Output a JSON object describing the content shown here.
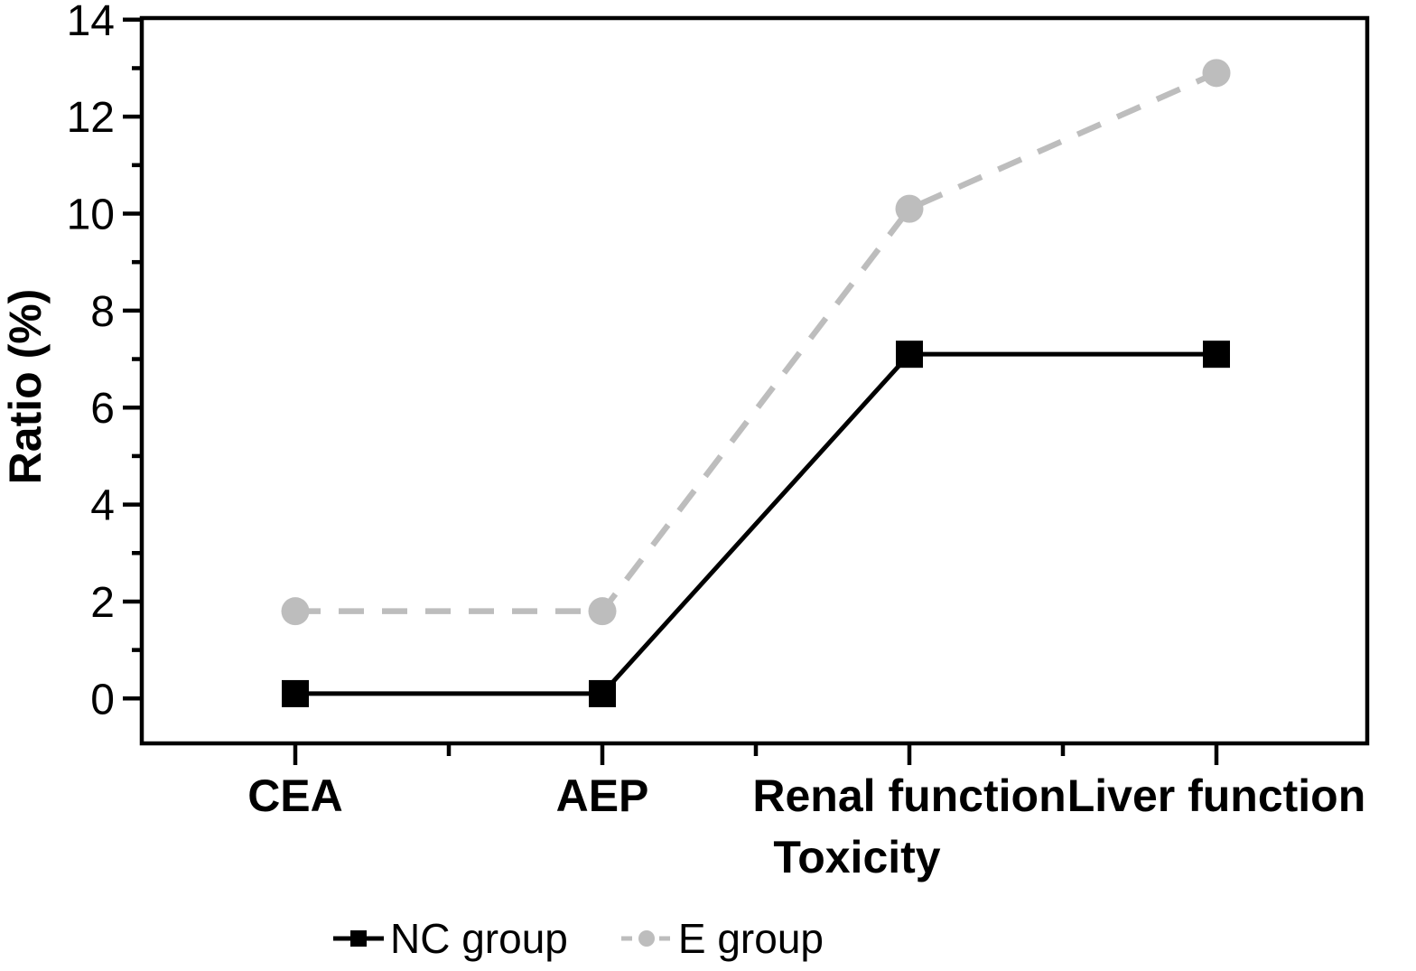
{
  "chart_data": {
    "type": "line",
    "categories": [
      "CEA",
      "AEP",
      "Renal function",
      "Liver function"
    ],
    "series": [
      {
        "name": "NC group",
        "values": [
          0.1,
          0.1,
          7.1,
          7.1
        ],
        "color": "#000000",
        "marker": "square",
        "line_style": "solid"
      },
      {
        "name": "E group",
        "values": [
          1.8,
          1.8,
          10.1,
          12.9
        ],
        "color": "#bdbdbd",
        "marker": "circle",
        "line_style": "dashed"
      }
    ],
    "title": "",
    "xlabel": "Toxicity",
    "ylabel": "Ratio (%)",
    "ylim": [
      0,
      14
    ],
    "ytick_step": 2,
    "yminor_step": 1,
    "ytick_labels": [
      "0",
      "2",
      "4",
      "6",
      "8",
      "10",
      "12",
      "14"
    ],
    "grid": false,
    "legend_position": "bottom",
    "axis_color": "#000000",
    "background_color": "#ffffff"
  }
}
